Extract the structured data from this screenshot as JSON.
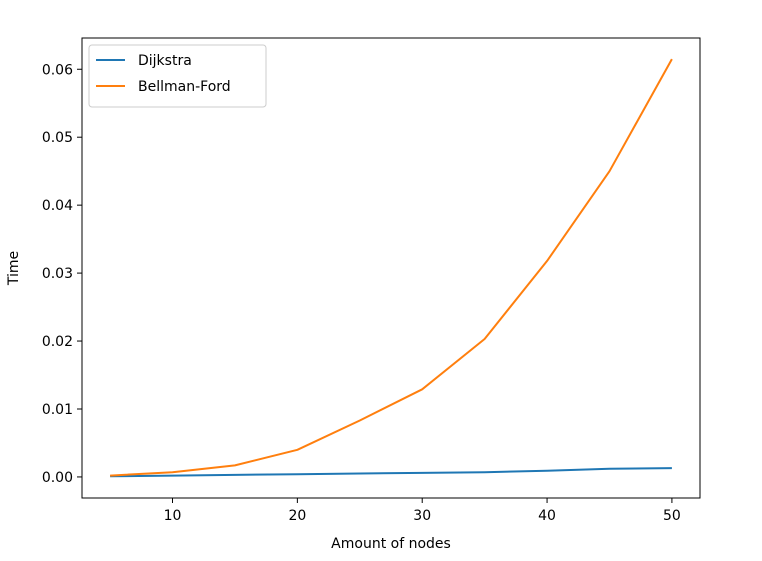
{
  "chart_data": {
    "type": "line",
    "title": "",
    "xlabel": "Amount of nodes",
    "ylabel": "Time",
    "xlim": [
      2.75,
      52.25
    ],
    "ylim": [
      -0.0031,
      0.0646
    ],
    "xticks": [
      10,
      20,
      30,
      40,
      50
    ],
    "yticks": [
      0.0,
      0.01,
      0.02,
      0.03,
      0.04,
      0.05,
      0.06
    ],
    "ytick_labels": [
      "0.00",
      "0.01",
      "0.02",
      "0.03",
      "0.04",
      "0.05",
      "0.06"
    ],
    "grid": false,
    "legend": {
      "position": "top-left"
    },
    "x": [
      5,
      10,
      15,
      20,
      25,
      30,
      35,
      40,
      45,
      50
    ],
    "series": [
      {
        "name": "Dijkstra",
        "color": "#1f77b4",
        "values": [
          0.0001,
          0.0002,
          0.0003,
          0.0004,
          0.0005,
          0.0006,
          0.0007,
          0.0009,
          0.0012,
          0.0013
        ]
      },
      {
        "name": "Bellman-Ford",
        "color": "#ff7f0e",
        "values": [
          0.0002,
          0.0007,
          0.0017,
          0.004,
          0.0083,
          0.0129,
          0.0203,
          0.0318,
          0.045,
          0.0615
        ]
      }
    ]
  }
}
